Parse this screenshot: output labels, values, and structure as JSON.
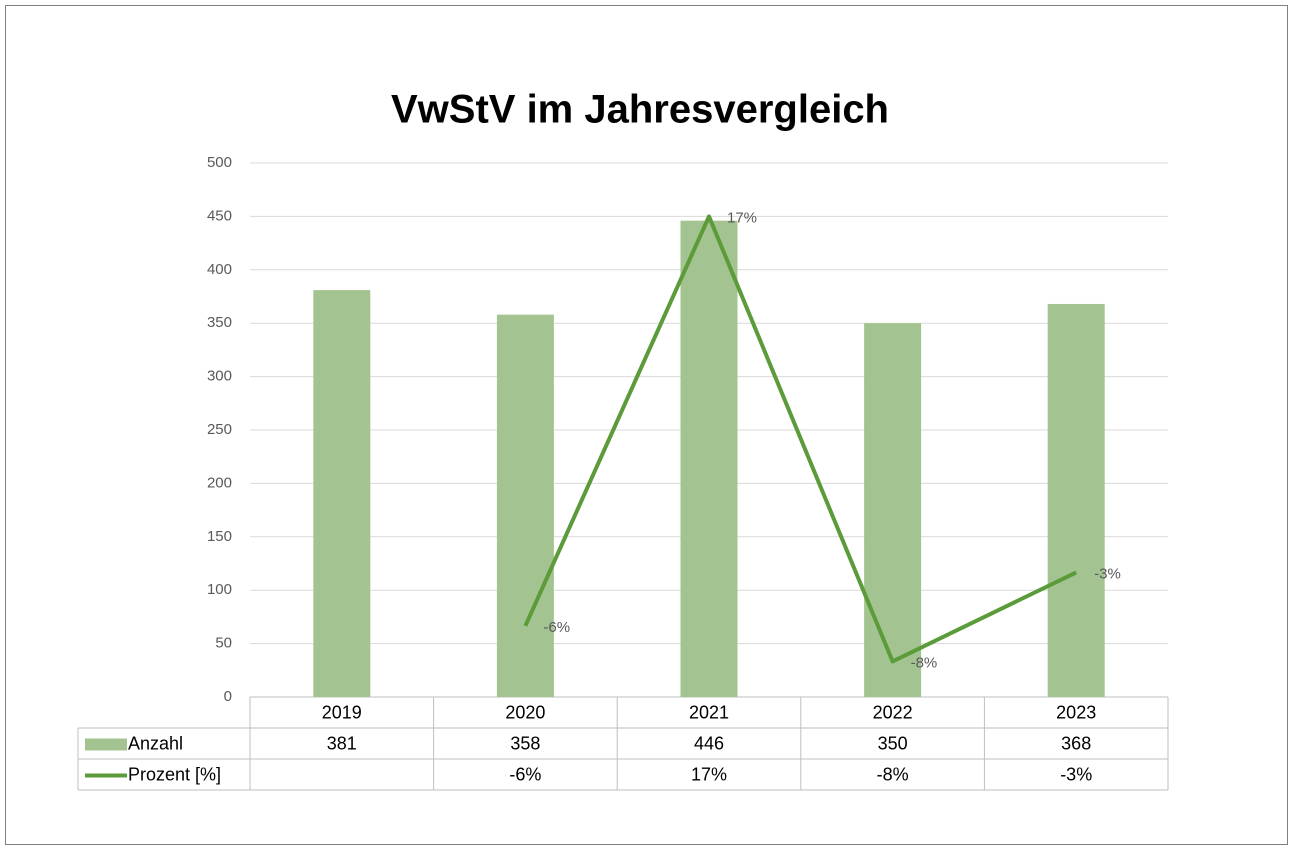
{
  "chart_data": {
    "type": "bar_line_table",
    "title": "VwStV im Jahresvergleich",
    "categories": [
      "2019",
      "2020",
      "2021",
      "2022",
      "2023"
    ],
    "series": [
      {
        "name": "Anzahl",
        "type": "bar",
        "color": "#a3c490",
        "values": [
          381,
          358,
          446,
          350,
          368
        ]
      },
      {
        "name": "Prozent [%]",
        "type": "line",
        "axis": "y2",
        "color": "#5b9b3a",
        "values": [
          null,
          -6,
          17,
          -8,
          -3
        ],
        "value_labels": [
          null,
          "-6%",
          "17%",
          "-8%",
          "-3%"
        ]
      }
    ],
    "ylim": [
      0,
      500
    ],
    "yticks": [
      0,
      50,
      100,
      150,
      200,
      250,
      300,
      350,
      400,
      450,
      500
    ],
    "y2lim": [
      -10,
      20
    ],
    "grid": true
  }
}
